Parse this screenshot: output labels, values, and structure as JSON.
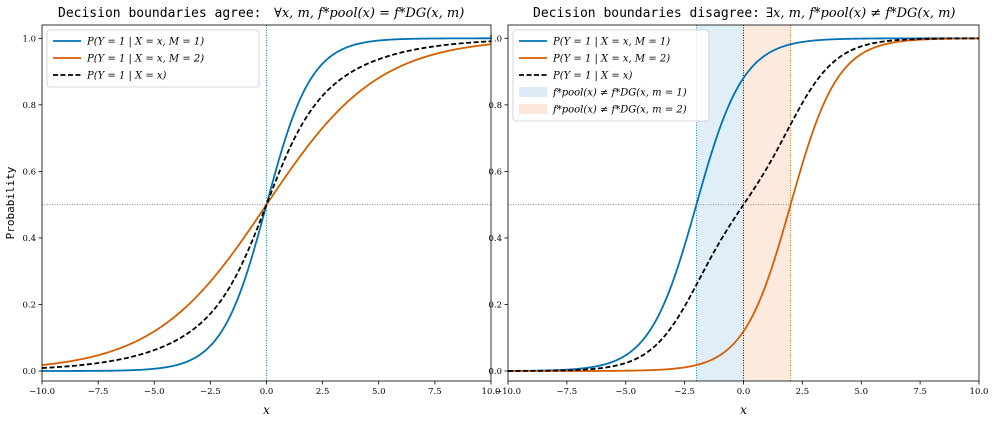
{
  "colors": {
    "blue": "#0072b2",
    "orange": "#d55e00",
    "black": "#000000",
    "shade_blue": "#d6e8f5",
    "shade_orange": "#fbe3d3",
    "ref_line": "#808080"
  },
  "chart_data": [
    {
      "type": "line",
      "title_text": "Decision boundaries agree:",
      "title_math": "∀x, m,  f*pool(x) = f*DG(x, m)",
      "xlabel": "x",
      "ylabel": "Probability",
      "xlim": [
        -10,
        10
      ],
      "ylim": [
        -0.03,
        1.04
      ],
      "xticks": [
        -10.0,
        -7.5,
        -5.0,
        -2.5,
        0.0,
        2.5,
        5.0,
        7.5,
        10.0
      ],
      "xtick_labels": [
        "−10.0",
        "−7.5",
        "−5.0",
        "−2.5",
        "0.0",
        "2.5",
        "5.0",
        "7.5",
        "10.0"
      ],
      "yticks": [
        0.0,
        0.2,
        0.4,
        0.6,
        0.8,
        1.0
      ],
      "ytick_labels": [
        "0.0",
        "0.2",
        "0.4",
        "0.6",
        "0.8",
        "1.0"
      ],
      "hline": 0.5,
      "vlines": [
        {
          "x": 0,
          "color": "blue"
        }
      ],
      "shaded": [],
      "legend_position": "upper-left",
      "series": [
        {
          "name": "P(Y = 1 | X = x, M = 1)",
          "color": "blue",
          "style": "solid",
          "slope": 1.0,
          "shift": 0,
          "x": [
            -10,
            -7.5,
            -5,
            -2.5,
            -1,
            0,
            1,
            2.5,
            5,
            7.5,
            10
          ],
          "y": [
            0.0,
            0.001,
            0.007,
            0.076,
            0.269,
            0.5,
            0.731,
            0.924,
            0.993,
            0.999,
            1.0
          ]
        },
        {
          "name": "P(Y = 1 | X = x, M = 2)",
          "color": "orange",
          "style": "solid",
          "slope": 0.4,
          "shift": 0,
          "x": [
            -10,
            -7.5,
            -5,
            -2.5,
            -1,
            0,
            1,
            2.5,
            5,
            7.5,
            10
          ],
          "y": [
            0.018,
            0.047,
            0.119,
            0.269,
            0.401,
            0.5,
            0.599,
            0.731,
            0.881,
            0.953,
            0.982
          ]
        },
        {
          "name": "P(Y = 1 | X = x)",
          "color": "black",
          "style": "dashed",
          "mixture": true,
          "x": [
            -10,
            -7.5,
            -5,
            -2.5,
            -1,
            0,
            1,
            2.5,
            5,
            7.5,
            10
          ],
          "y": [
            0.009,
            0.024,
            0.063,
            0.172,
            0.335,
            0.5,
            0.665,
            0.828,
            0.937,
            0.976,
            0.991
          ]
        }
      ]
    },
    {
      "type": "line",
      "title_text": "Decision boundaries disagree:",
      "title_math": "∃x, m,  f*pool(x) ≠ f*DG(x, m)",
      "xlabel": "x",
      "ylabel": "",
      "xlim": [
        -10,
        10
      ],
      "ylim": [
        -0.03,
        1.04
      ],
      "xticks": [
        -10.0,
        -7.5,
        -5.0,
        -2.5,
        0.0,
        2.5,
        5.0,
        7.5,
        10.0
      ],
      "xtick_labels": [
        "−10.0",
        "−7.5",
        "−5.0",
        "−2.5",
        "0.0",
        "2.5",
        "5.0",
        "7.5",
        "10.0"
      ],
      "yticks": [
        0.0,
        0.2,
        0.4,
        0.6,
        0.8,
        1.0
      ],
      "ytick_labels": [
        "0.0",
        "0.2",
        "0.4",
        "0.6",
        "0.8",
        "1.0"
      ],
      "hline": 0.5,
      "vlines": [
        {
          "x": -2,
          "color": "blue"
        },
        {
          "x": 0,
          "color": "black"
        },
        {
          "x": 2,
          "color": "orange"
        }
      ],
      "shaded": [
        {
          "from": -2,
          "to": 0,
          "color": "shade_blue",
          "label": "f*pool(x) ≠ f*DG(x, m = 1)"
        },
        {
          "from": 0,
          "to": 2,
          "color": "shade_orange",
          "label": "f*pool(x) ≠ f*DG(x, m = 2)"
        }
      ],
      "legend_position": "upper-left",
      "series": [
        {
          "name": "P(Y = 1 | X = x, M = 1)",
          "color": "blue",
          "style": "solid",
          "slope": 1.0,
          "shift": -2,
          "x": [
            -10,
            -7.5,
            -5,
            -2.5,
            -2,
            0,
            2,
            5,
            7.5,
            10
          ],
          "y": [
            0.0,
            0.004,
            0.047,
            0.378,
            0.5,
            0.881,
            0.982,
            0.999,
            1.0,
            1.0
          ]
        },
        {
          "name": "P(Y = 1 | X = x, M = 2)",
          "color": "orange",
          "style": "solid",
          "slope": 1.0,
          "shift": 2,
          "x": [
            -10,
            -7.5,
            -5,
            -2.5,
            0,
            2,
            2.5,
            5,
            7.5,
            10
          ],
          "y": [
            0.0,
            0.0,
            0.001,
            0.011,
            0.119,
            0.5,
            0.622,
            0.953,
            0.996,
            1.0
          ]
        },
        {
          "name": "P(Y = 1 | X = x)",
          "color": "black",
          "style": "dashed",
          "mixture": true,
          "x": [
            -10,
            -7.5,
            -5,
            -2.5,
            -2,
            0,
            2,
            2.5,
            5,
            7.5,
            10
          ],
          "y": [
            0.0,
            0.002,
            0.024,
            0.194,
            0.259,
            0.5,
            0.741,
            0.806,
            0.976,
            0.998,
            1.0
          ]
        }
      ]
    }
  ]
}
